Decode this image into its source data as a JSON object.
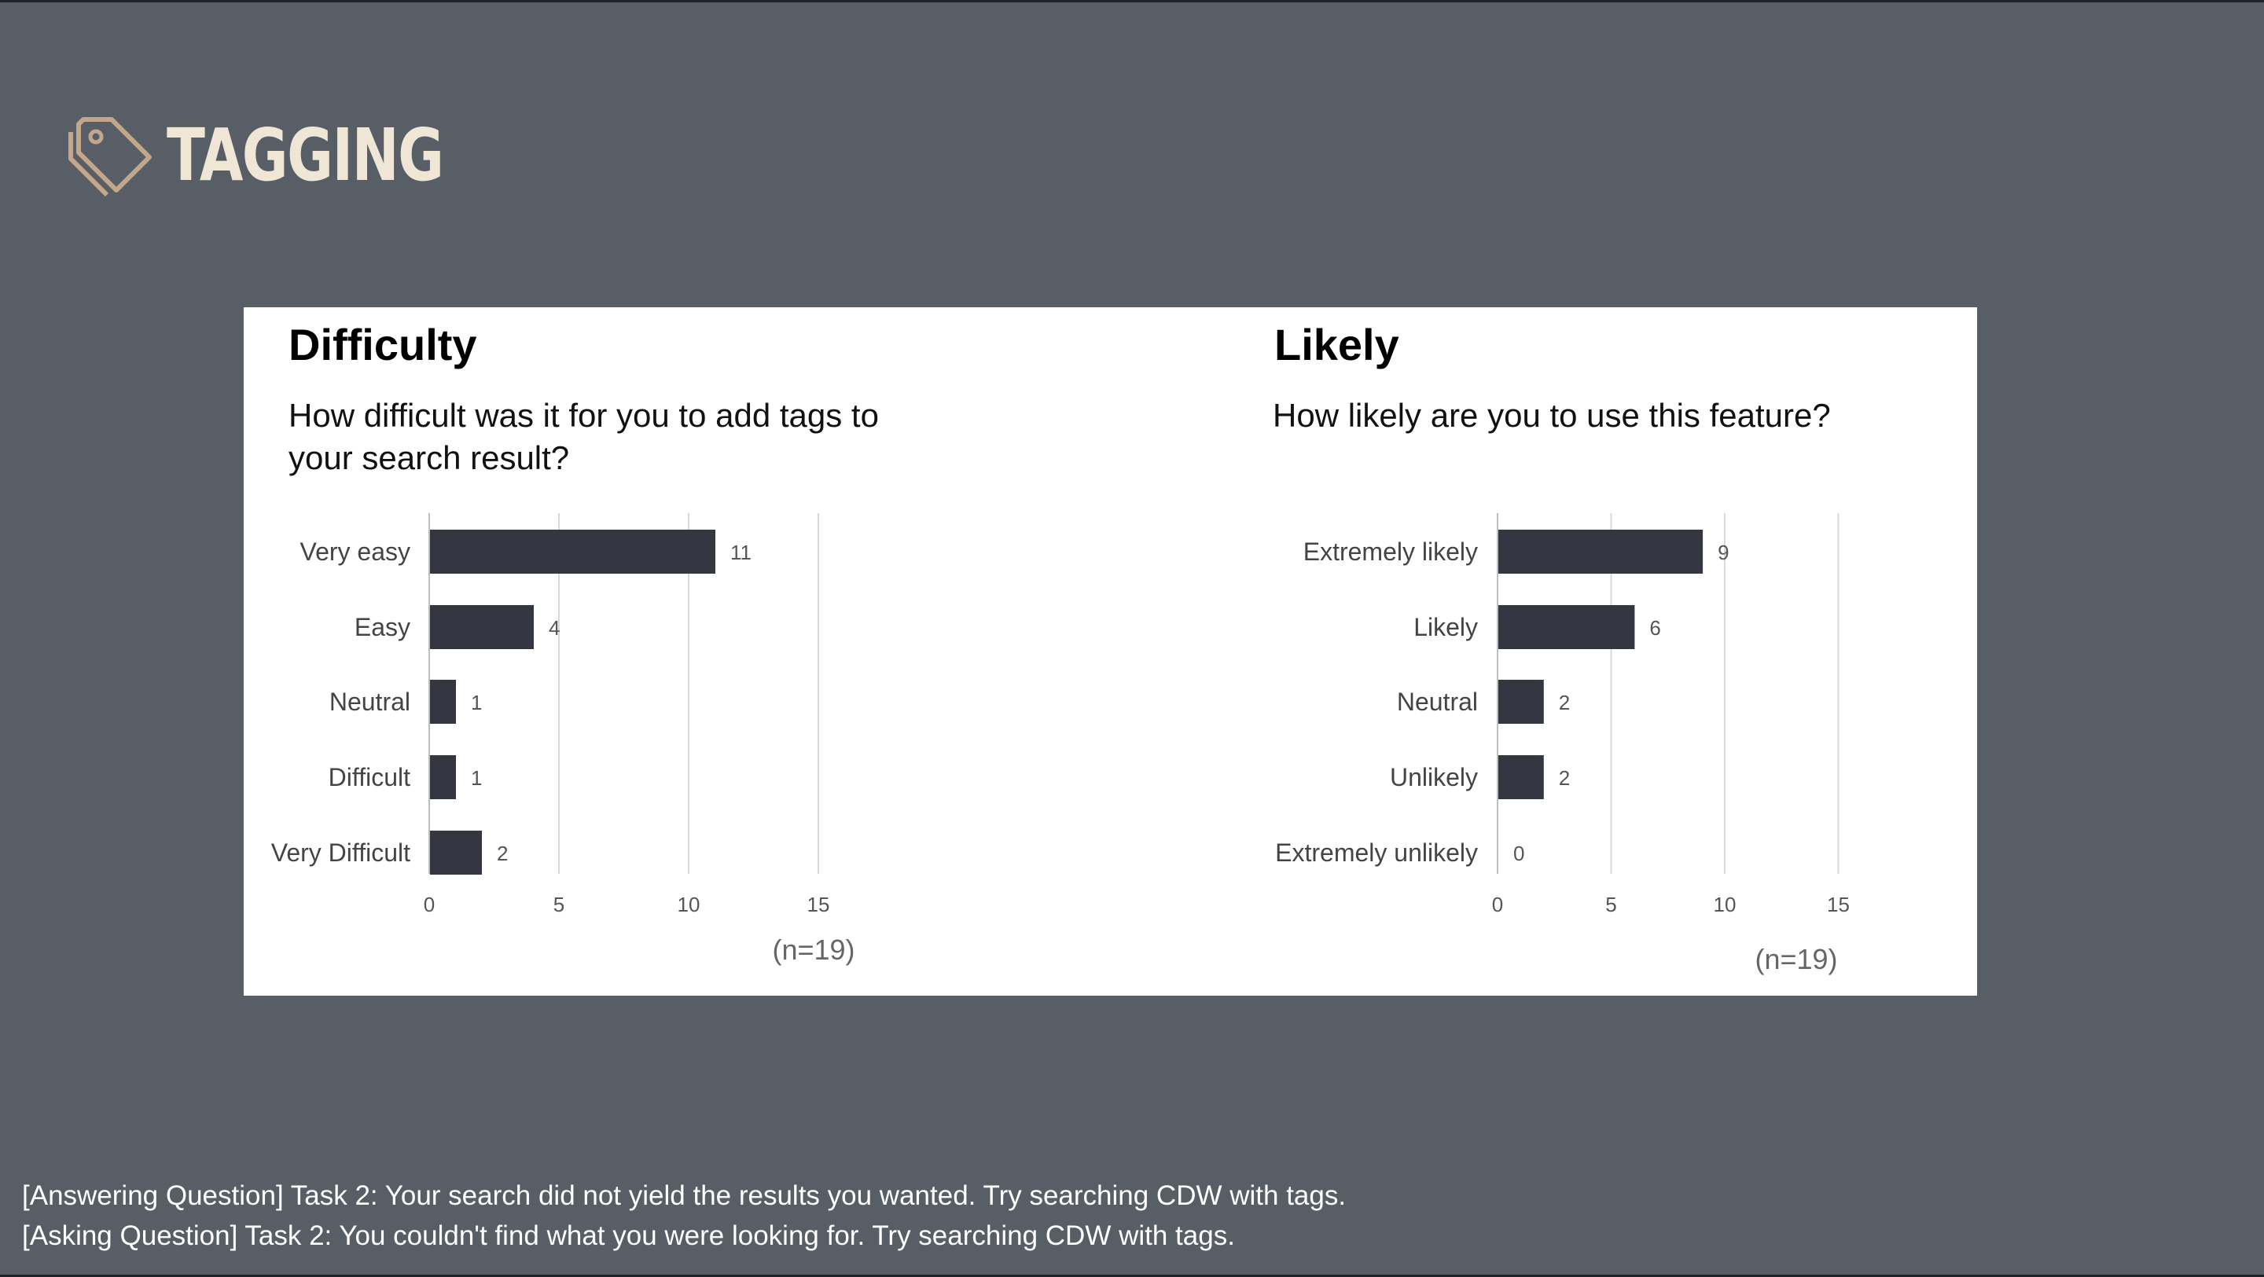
{
  "header": {
    "title": "TAGGING",
    "icon": "tag-icon",
    "icon_color": "#c4a68d",
    "title_color": "#efe6d6"
  },
  "colors": {
    "background": "#575e66",
    "panel": "#ffffff",
    "bar": "#343741",
    "grid": "#d9d9d9",
    "text": "#000000",
    "muted": "#555555"
  },
  "chart_data": [
    {
      "type": "bar",
      "orientation": "horizontal",
      "title": "Difficulty",
      "subtitle_lines": [
        "How difficult was it for you to add tags to",
        "your search result?"
      ],
      "categories": [
        "Very easy",
        "Easy",
        "Neutral",
        "Difficult",
        "Very Difficult"
      ],
      "values": [
        11,
        4,
        1,
        1,
        2
      ],
      "xlim": [
        0,
        15
      ],
      "x_ticks": [
        "0",
        "5",
        "10",
        "15"
      ],
      "grid": true,
      "note": "(n=19)"
    },
    {
      "type": "bar",
      "orientation": "horizontal",
      "title": "Likely",
      "subtitle_lines": [
        "How likely are you to use this feature?"
      ],
      "categories": [
        "Extremely likely",
        "Likely",
        "Neutral",
        "Unlikely",
        "Extremely unlikely"
      ],
      "values": [
        9,
        6,
        2,
        2,
        0
      ],
      "xlim": [
        0,
        15
      ],
      "x_ticks": [
        "0",
        "5",
        "10",
        "15"
      ],
      "grid": true,
      "note": "(n=19)"
    }
  ],
  "footer": {
    "line1": "[Answering Question] Task 2: Your search did not yield the results you wanted. Try searching CDW with tags.",
    "line2": "[Asking Question] Task 2: You couldn't find what you were looking for. Try searching CDW with tags."
  }
}
